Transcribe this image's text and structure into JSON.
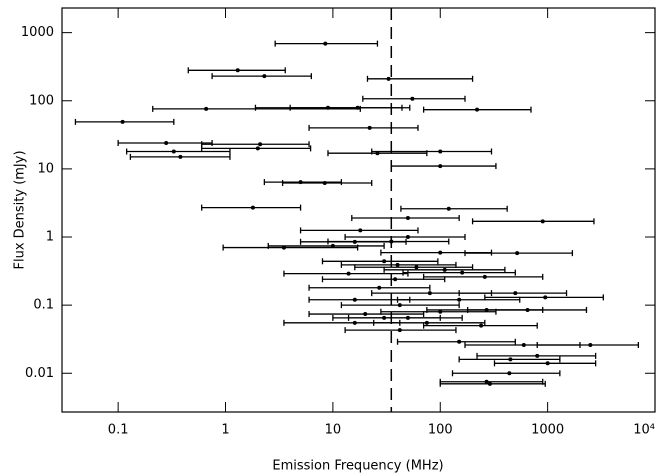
{
  "chart_data": {
    "type": "scatter",
    "xlabel": "Emission Frequency (MHz)",
    "ylabel": "Flux Density (mJy)",
    "xscale": "log",
    "yscale": "log",
    "color": "#000000",
    "vline": 35,
    "xlim": [
      0.03,
      10000
    ],
    "ylim": [
      0.0027,
      2300
    ],
    "xticks": [
      0.1,
      1,
      10,
      100,
      1000,
      {
        "value": 10000,
        "label": "10⁴"
      }
    ],
    "yticks": [
      0.01,
      0.1,
      1,
      10,
      100,
      1000
    ],
    "x": [
      8.5,
      1.3,
      2.3,
      33,
      55,
      0.66,
      9,
      17,
      220,
      0.11,
      22,
      0.28,
      2.1,
      0.33,
      0.38,
      2.0,
      26,
      100,
      100,
      5,
      8.4,
      1.8,
      120,
      50,
      900,
      18,
      3.5,
      10,
      16,
      35,
      50,
      520,
      100,
      30,
      40,
      60,
      110,
      160,
      14,
      260,
      38,
      27,
      80,
      500,
      950,
      16,
      150,
      42,
      650,
      270,
      100,
      20,
      30,
      50,
      16,
      75,
      240,
      42,
      150,
      600,
      2500,
      800,
      450,
      1000,
      440,
      270,
      290
    ],
    "x_low": [
      2.9,
      0.45,
      0.75,
      21,
      19,
      0.21,
      1.9,
      4,
      70,
      0.04,
      6,
      0.1,
      0.6,
      0.12,
      0.13,
      0.6,
      9,
      23,
      35,
      2.3,
      3.4,
      0.6,
      43,
      15,
      200,
      5,
      0.95,
      2.5,
      5,
      9,
      13,
      170,
      28,
      8,
      12,
      16,
      30,
      45,
      3.5,
      70,
      8,
      6,
      23,
      150,
      260,
      6,
      40,
      12,
      180,
      75,
      28,
      6,
      10,
      14,
      3.5,
      24,
      70,
      13,
      40,
      170,
      800,
      220,
      150,
      320,
      130,
      100,
      100
    ],
    "x_high": [
      26,
      3.6,
      6.3,
      200,
      170,
      18,
      44,
      52,
      700,
      0.33,
      62,
      0.75,
      6,
      1.1,
      1.1,
      6.2,
      75,
      300,
      330,
      12,
      23,
      5,
      420,
      150,
      2700,
      62,
      17,
      30,
      48,
      120,
      170,
      1700,
      300,
      95,
      140,
      200,
      400,
      500,
      50,
      900,
      110,
      80,
      300,
      1500,
      3300,
      52,
      550,
      150,
      2300,
      900,
      330,
      70,
      100,
      160,
      42,
      260,
      800,
      140,
      500,
      2000,
      7000,
      2800,
      1300,
      2800,
      1300,
      900,
      950
    ],
    "values": [
      690,
      280,
      230,
      210,
      107,
      76,
      79,
      79,
      74,
      49,
      40,
      24,
      23,
      18,
      15,
      20,
      17,
      18,
      11,
      6.4,
      6.2,
      2.7,
      2.6,
      1.9,
      1.7,
      1.25,
      0.7,
      0.74,
      0.85,
      0.86,
      1.0,
      0.58,
      0.59,
      0.44,
      0.39,
      0.36,
      0.33,
      0.3,
      0.29,
      0.26,
      0.24,
      0.18,
      0.15,
      0.15,
      0.13,
      0.12,
      0.12,
      0.1,
      0.085,
      0.085,
      0.08,
      0.074,
      0.065,
      0.065,
      0.055,
      0.055,
      0.05,
      0.043,
      0.029,
      0.026,
      0.026,
      0.018,
      0.016,
      0.014,
      0.01,
      0.0075,
      0.007
    ]
  }
}
